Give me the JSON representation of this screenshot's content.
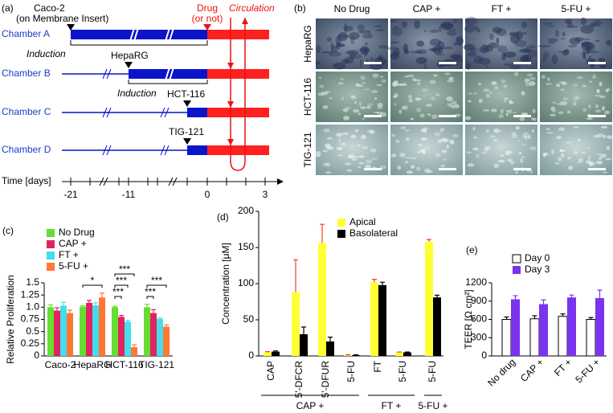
{
  "panel_labels": [
    "(a)",
    "(b)",
    "(c)",
    "(d)",
    "(e)"
  ],
  "timeline": {
    "caco": "Caco-2",
    "caco_note": "(on Membrane Insert)",
    "drug": "Drug",
    "drug_note": "(or not)",
    "circulation": "Circulation",
    "chambers": [
      "Chamber A",
      "Chamber B",
      "Chamber C",
      "Chamber D"
    ],
    "induction": [
      "Induction",
      "Induction"
    ],
    "cells": [
      "HepaRG",
      "HCT-116",
      "TIG-121"
    ],
    "axis_label": "Time [days]",
    "ticks": [
      "-21",
      "-11",
      "0",
      "3"
    ]
  },
  "images": {
    "columns": [
      "No Drug",
      "CAP +",
      "FT +",
      "5-FU +"
    ],
    "rows": [
      "HepaRG",
      "HCT-116",
      "TIG-121"
    ]
  },
  "chart_data": [
    {
      "type": "bar",
      "ylabel": "Relative Proliferation",
      "categories": [
        "Caco-2",
        "HepaRG",
        "HCT-116",
        "TIG-121"
      ],
      "series": [
        {
          "name": "No Drug",
          "color": "#66dd33",
          "values": [
            1.0,
            1.01,
            1.0,
            1.0
          ],
          "errors": [
            0.05,
            0.02,
            0.02,
            0.06
          ]
        },
        {
          "name": "CAP +",
          "color": "#e0245e",
          "values": [
            0.93,
            1.09,
            0.8,
            0.88
          ],
          "errors": [
            0.06,
            0.05,
            0.03,
            0.07
          ]
        },
        {
          "name": "FT +",
          "color": "#44ddee",
          "values": [
            1.03,
            1.04,
            0.7,
            0.76
          ],
          "errors": [
            0.07,
            0.05,
            0.03,
            0.02
          ]
        },
        {
          "name": "5-FU +",
          "color": "#ff7733",
          "values": [
            0.88,
            1.2,
            0.18,
            0.6
          ],
          "errors": [
            0.06,
            0.09,
            0.05,
            0.04
          ]
        }
      ],
      "ylim": [
        0,
        1.5
      ],
      "yticks": [
        0,
        0.25,
        0.5,
        0.75,
        {
          "value": 1,
          "label": "1.0"
        },
        1.25,
        1.5
      ],
      "annotations": [
        "*",
        "***",
        "***",
        "***",
        "***",
        "***"
      ]
    },
    {
      "type": "bar",
      "ylabel": "Concentration [μM]",
      "categories": [
        "CAP",
        "5'-DFCR",
        "5'-DFUR",
        "5-FU",
        "FT",
        "5-FU",
        "5-FU"
      ],
      "groups": [
        "CAP +",
        "FT +",
        "5-FU +"
      ],
      "series": [
        {
          "name": "Apical",
          "color": "#ffff33",
          "error_color": "#ee4422",
          "values": [
            5,
            88,
            156,
            1,
            102,
            5,
            158
          ],
          "errors": [
            1,
            45,
            26,
            0.5,
            4,
            0.5,
            3
          ]
        },
        {
          "name": "Basolateral",
          "color": "#000000",
          "error_color": "#000000",
          "values": [
            6,
            30,
            20,
            1,
            98,
            5,
            81
          ],
          "errors": [
            1,
            10,
            6,
            0.5,
            4,
            0.5,
            3
          ]
        }
      ],
      "ylim": [
        0,
        200
      ],
      "yticks": [
        0,
        50,
        100,
        150,
        200
      ]
    },
    {
      "type": "bar",
      "ylabel": "TEER [Ω cm²]",
      "categories": [
        "No drug",
        "CAP +",
        "FT +",
        "5-FU +"
      ],
      "series": [
        {
          "name": "Day 0",
          "color": "#ffffff",
          "error_color": "#000000",
          "values": [
            600,
            610,
            650,
            600
          ],
          "errors": [
            40,
            50,
            40,
            30
          ]
        },
        {
          "name": "Day 3",
          "color": "#7a33ee",
          "error_color": "#7a33ee",
          "values": [
            930,
            850,
            960,
            950
          ],
          "errors": [
            60,
            70,
            40,
            130
          ]
        }
      ],
      "ylim": [
        0,
        1200
      ],
      "yticks": [
        0,
        300,
        600,
        900,
        1200
      ]
    }
  ]
}
